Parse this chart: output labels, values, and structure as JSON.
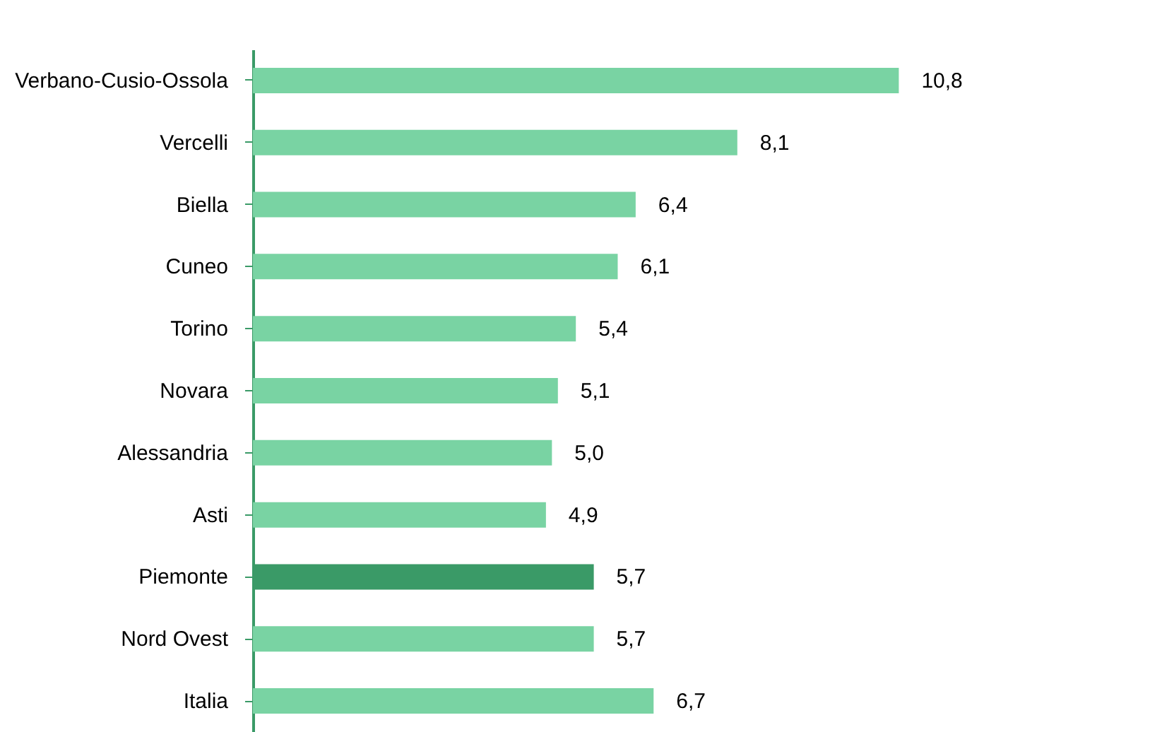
{
  "chart_data": {
    "type": "bar",
    "orientation": "horizontal",
    "categories": [
      "Verbano-Cusio-Ossola",
      "Vercelli",
      "Biella",
      "Cuneo",
      "Torino",
      "Novara",
      "Alessandria",
      "Asti",
      null,
      "Piemonte",
      "Nord Ovest",
      "Italia"
    ],
    "values": [
      10.8,
      8.1,
      6.4,
      6.1,
      5.4,
      5.1,
      5.0,
      4.9,
      null,
      5.7,
      5.7,
      6.7
    ],
    "value_labels": [
      "10,8",
      "8,1",
      "6,4",
      "6,1",
      "5,4",
      "5,1",
      "5,0",
      "4,9",
      null,
      "5,7",
      "5,7",
      "6,7"
    ],
    "colors": [
      "#79d3a3",
      "#79d3a3",
      "#79d3a3",
      "#79d3a3",
      "#79d3a3",
      "#79d3a3",
      "#79d3a3",
      "#79d3a3",
      "#79d3a3",
      "#3a9a67",
      "#79d3a3",
      "#79d3a3"
    ],
    "xlim": [
      0,
      15
    ]
  }
}
